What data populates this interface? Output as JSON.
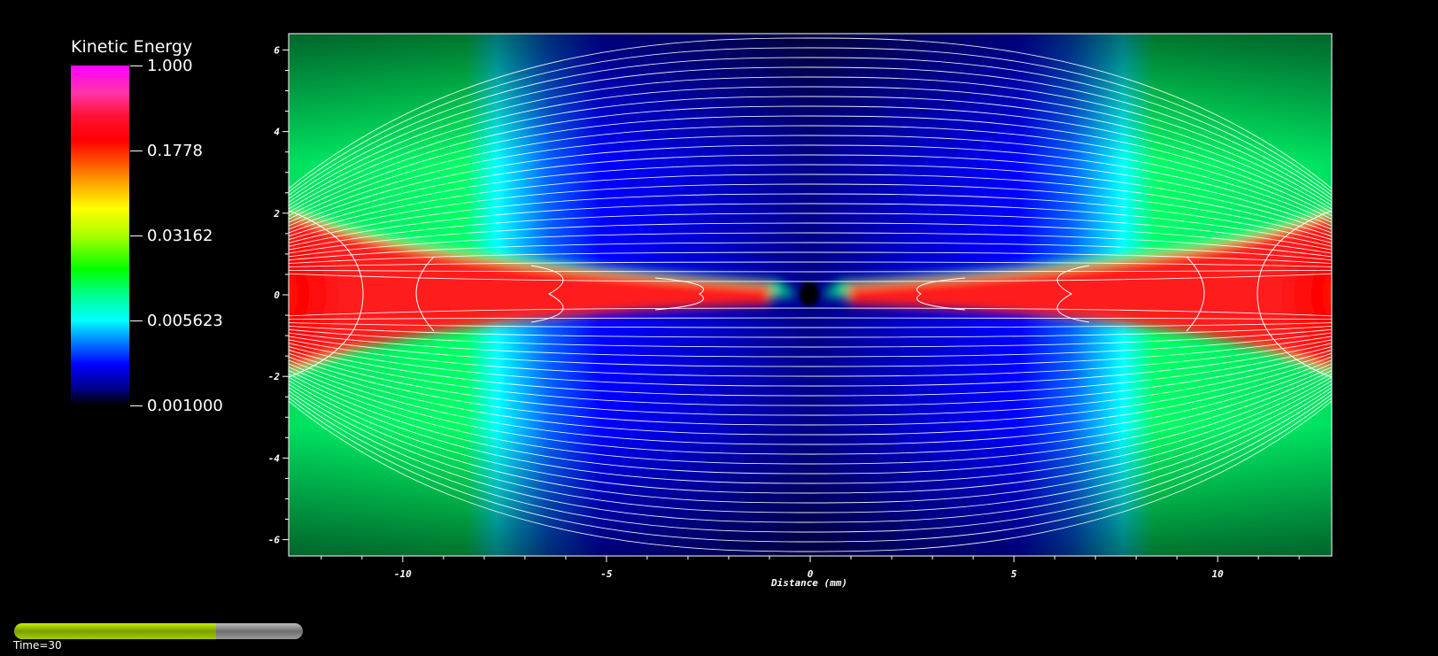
{
  "legend": {
    "title": "Kinetic Energy",
    "ticks": [
      "1.000",
      "0.1778",
      "0.03162",
      "0.005623",
      "0.001000"
    ]
  },
  "time": {
    "label": "Time=30",
    "progress": 0.7
  },
  "chart_data": {
    "type": "heatmap",
    "title": "",
    "xlabel": "Distance (mm)",
    "ylabel": "",
    "xlim": [
      -12.8,
      12.8
    ],
    "ylim": [
      -6.4,
      6.4
    ],
    "xticks": [
      -10,
      -5,
      0,
      5,
      10
    ],
    "yticks": [
      -6,
      -4,
      -2,
      0,
      2,
      4,
      6
    ],
    "colorscale": "log",
    "color_range": [
      0.001,
      1.0
    ],
    "overlay": "white streamlines"
  }
}
